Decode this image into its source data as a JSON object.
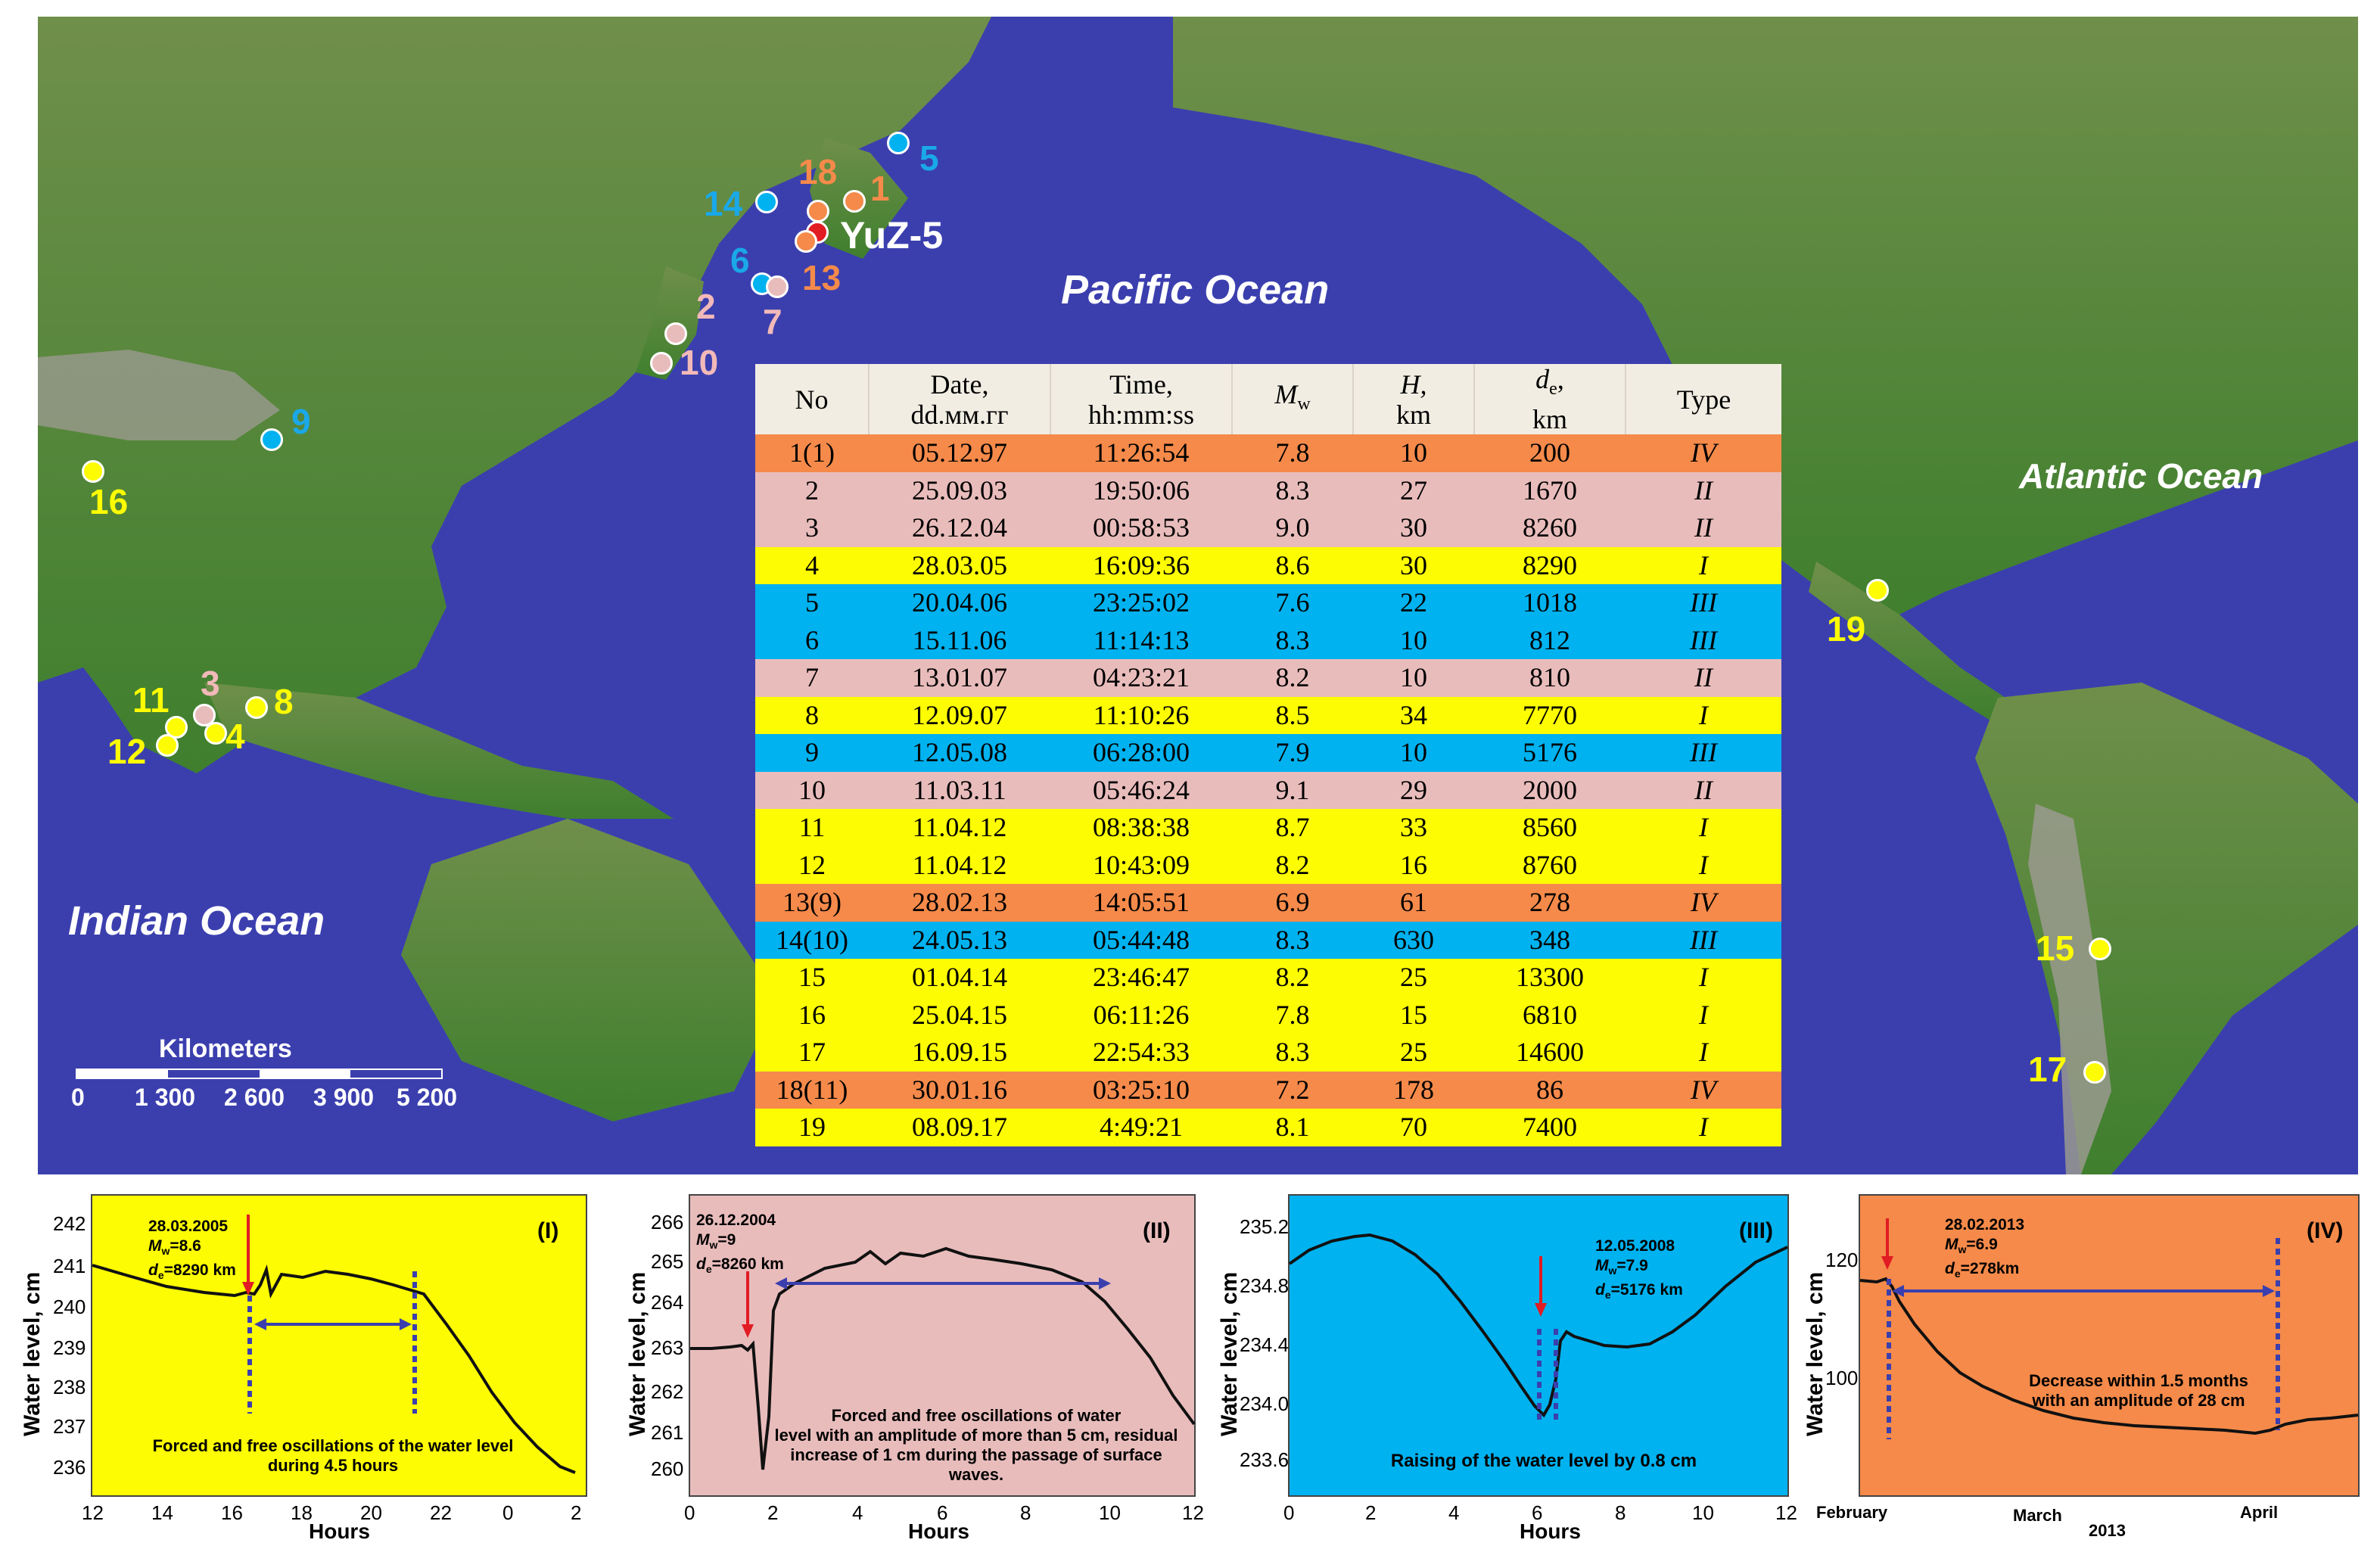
{
  "map": {
    "oceans": {
      "pacific": "Pacific Ocean",
      "atlantic": "Atlantic Ocean",
      "indian": "Indian Ocean"
    },
    "station": "YuZ-5",
    "markers": [
      "1",
      "2",
      "3",
      "4",
      "5",
      "6",
      "7",
      "8",
      "9",
      "10",
      "11",
      "12",
      "13",
      "14",
      "15",
      "16",
      "17",
      "18",
      "19"
    ],
    "colors": {
      "type_I": "#fdfc02",
      "type_II": "#e9bcbc",
      "type_III": "#00b2ef",
      "type_IV": "#f58a4a",
      "station": "#e21c23",
      "label_IV": "#f58a4a",
      "label_II": "#f2b9b9",
      "label_III": "#1aa8e8",
      "label_I": "#fdfc02"
    },
    "scale": {
      "title": "Kilometers",
      "ticks": [
        "0",
        "1 300",
        "2 600",
        "3 900",
        "5 200"
      ]
    }
  },
  "table": {
    "headers": {
      "no": "No",
      "date": [
        "Date,",
        "dd.мм.гг"
      ],
      "time": [
        "Time,",
        "hh:mm:ss"
      ],
      "mw": [
        "M",
        "w"
      ],
      "h": [
        "H,",
        "km"
      ],
      "de": [
        "d",
        "e",
        ",",
        "km"
      ],
      "type": "Type"
    },
    "rows": [
      {
        "no": "1(1)",
        "date": "05.12.97",
        "time": "11:26:54",
        "mw": "7.8",
        "h": "10",
        "de": "200",
        "type": "IV"
      },
      {
        "no": "2",
        "date": "25.09.03",
        "time": "19:50:06",
        "mw": "8.3",
        "h": "27",
        "de": "1670",
        "type": "II"
      },
      {
        "no": "3",
        "date": "26.12.04",
        "time": "00:58:53",
        "mw": "9.0",
        "h": "30",
        "de": "8260",
        "type": "II"
      },
      {
        "no": "4",
        "date": "28.03.05",
        "time": "16:09:36",
        "mw": "8.6",
        "h": "30",
        "de": "8290",
        "type": "I"
      },
      {
        "no": "5",
        "date": "20.04.06",
        "time": "23:25:02",
        "mw": "7.6",
        "h": "22",
        "de": "1018",
        "type": "III"
      },
      {
        "no": "6",
        "date": "15.11.06",
        "time": "11:14:13",
        "mw": "8.3",
        "h": "10",
        "de": "812",
        "type": "III"
      },
      {
        "no": "7",
        "date": "13.01.07",
        "time": "04:23:21",
        "mw": "8.2",
        "h": "10",
        "de": "810",
        "type": "II"
      },
      {
        "no": "8",
        "date": "12.09.07",
        "time": "11:10:26",
        "mw": "8.5",
        "h": "34",
        "de": "7770",
        "type": "I"
      },
      {
        "no": "9",
        "date": "12.05.08",
        "time": "06:28:00",
        "mw": "7.9",
        "h": "10",
        "de": "5176",
        "type": "III"
      },
      {
        "no": "10",
        "date": "11.03.11",
        "time": "05:46:24",
        "mw": "9.1",
        "h": "29",
        "de": "2000",
        "type": "II"
      },
      {
        "no": "11",
        "date": "11.04.12",
        "time": "08:38:38",
        "mw": "8.7",
        "h": "33",
        "de": "8560",
        "type": "I"
      },
      {
        "no": "12",
        "date": "11.04.12",
        "time": "10:43:09",
        "mw": "8.2",
        "h": "16",
        "de": "8760",
        "type": "I"
      },
      {
        "no": "13(9)",
        "date": "28.02.13",
        "time": "14:05:51",
        "mw": "6.9",
        "h": "61",
        "de": "278",
        "type": "IV"
      },
      {
        "no": "14(10)",
        "date": "24.05.13",
        "time": "05:44:48",
        "mw": "8.3",
        "h": "630",
        "de": "348",
        "type": "III"
      },
      {
        "no": "15",
        "date": "01.04.14",
        "time": "23:46:47",
        "mw": "8.2",
        "h": "25",
        "de": "13300",
        "type": "I"
      },
      {
        "no": "16",
        "date": "25.04.15",
        "time": "06:11:26",
        "mw": "7.8",
        "h": "15",
        "de": "6810",
        "type": "I"
      },
      {
        "no": "17",
        "date": "16.09.15",
        "time": "22:54:33",
        "mw": "8.3",
        "h": "25",
        "de": "14600",
        "type": "I"
      },
      {
        "no": "18(11)",
        "date": "30.01.16",
        "time": "03:25:10",
        "mw": "7.2",
        "h": "178",
        "de": "86",
        "type": "IV"
      },
      {
        "no": "19",
        "date": "08.09.17",
        "time": "4:49:21",
        "mw": "8.1",
        "h": "70",
        "de": "7400",
        "type": "I"
      }
    ]
  },
  "panels": [
    {
      "id": "I",
      "label": "(I)",
      "bg": "#fdfc02",
      "ylabel": "Water level, cm",
      "xlabel": "Hours",
      "yticks": [
        "242",
        "241",
        "240",
        "239",
        "238",
        "237",
        "236"
      ],
      "xticks": [
        "12",
        "14",
        "16",
        "18",
        "20",
        "22",
        "0",
        "2"
      ],
      "quake": [
        "28.03.2005",
        "M",
        "w",
        "=8.6",
        "d",
        "e",
        "=8290 km"
      ],
      "note": [
        "Forced and free oscillations of the water level",
        "during 4.5 hours"
      ]
    },
    {
      "id": "II",
      "label": "(II)",
      "bg": "#e9bcbc",
      "ylabel": "Water level, cm",
      "xlabel": "Hours",
      "yticks": [
        "266",
        "265",
        "264",
        "263",
        "262",
        "261",
        "260"
      ],
      "xticks": [
        "0",
        "2",
        "4",
        "6",
        "8",
        "10",
        "12"
      ],
      "quake": [
        "26.12.2004",
        "M",
        "w",
        "=9",
        "d",
        "e",
        "=8260 km"
      ],
      "note": [
        "Forced and free oscillations of water",
        "level with an amplitude of more than 5 cm, residual",
        "increase of 1 cm during the passage of surface waves."
      ]
    },
    {
      "id": "III",
      "label": "(III)",
      "bg": "#00b2ef",
      "ylabel": "Water level, cm",
      "xlabel": "Hours",
      "yticks": [
        "235.2",
        "234.8",
        "234.4",
        "234.0",
        "233.6"
      ],
      "xticks": [
        "0",
        "2",
        "4",
        "6",
        "8",
        "10",
        "12"
      ],
      "quake": [
        "12.05.2008",
        "M",
        "w",
        "=7.9",
        "d",
        "e",
        "=5176 km"
      ],
      "note": [
        "Raising of the water level by 0.8 cm"
      ]
    },
    {
      "id": "IV",
      "label": "(IV)",
      "bg": "#f58a4a",
      "ylabel": "Water level, cm",
      "xlabel": "2013",
      "yticks": [
        "120",
        "100"
      ],
      "xticks": [
        "February",
        "March",
        "April"
      ],
      "quake": [
        "28.02.2013",
        "M",
        "w",
        "=6.9",
        "d",
        "e",
        "=278km"
      ],
      "note": [
        "Decrease within 1.5 months",
        "with an amplitude of 28 cm"
      ]
    }
  ]
}
